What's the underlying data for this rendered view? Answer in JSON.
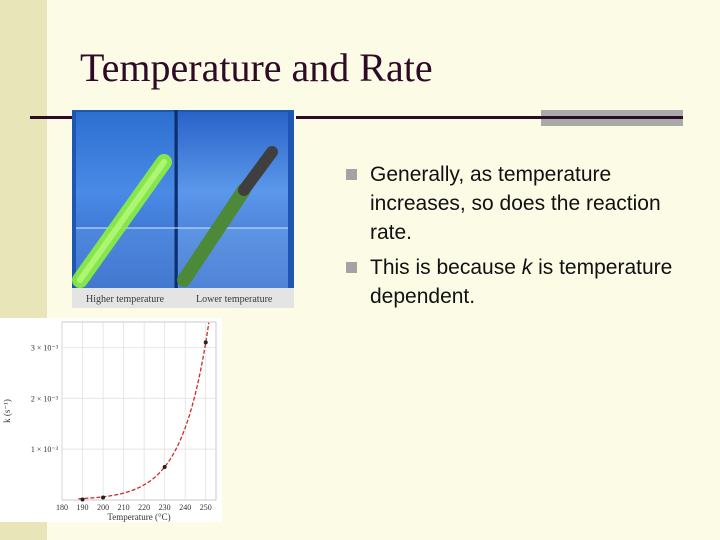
{
  "slide": {
    "title": "Temperature and Rate",
    "bullets": [
      {
        "text_before": "Generally, as temperature increases, so does the reaction rate.",
        "italic": "",
        "text_after": ""
      },
      {
        "text_before": "This is because ",
        "italic": "k",
        "text_after": " is temperature dependent."
      }
    ]
  },
  "photo": {
    "caption_left": "Higher temperature",
    "caption_right": "Lower temperature"
  },
  "colors": {
    "title": "#2e0a26",
    "background": "#fbfbe6",
    "side_band": "#e8e6b8",
    "bullet_marker": "#a3a3a3",
    "curve": "#cc2b2b",
    "glow": "#8cf23c"
  },
  "chart_data": {
    "type": "line",
    "x": [
      190,
      200,
      230,
      250
    ],
    "values": [
      1e-05,
      5e-05,
      0.00065,
      0.0031
    ],
    "xlabel": "Temperature (°C)",
    "ylabel": "k (s⁻¹)",
    "xlim": [
      180,
      255
    ],
    "ylim": [
      0,
      0.0035
    ],
    "x_ticks": [
      "180",
      "190",
      "200",
      "210",
      "220",
      "230",
      "240",
      "250"
    ],
    "y_ticks": [
      "1 × 10⁻³",
      "2 × 10⁻³",
      "3 × 10⁻³"
    ],
    "grid": true
  }
}
